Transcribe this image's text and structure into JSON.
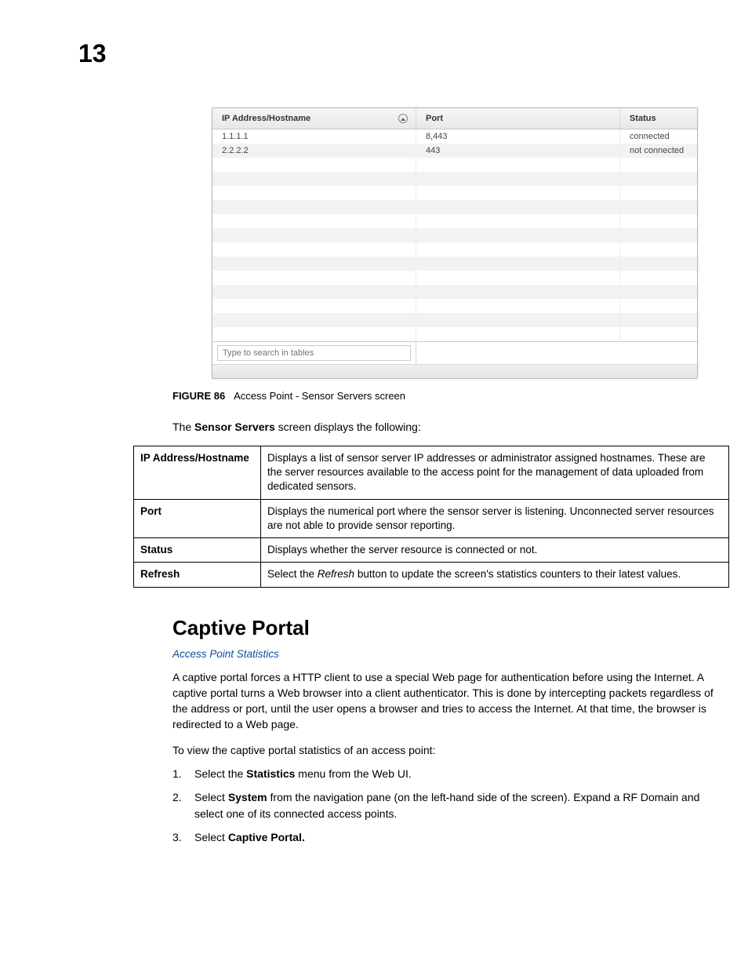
{
  "page_number": "13",
  "screenshot_table": {
    "columns": {
      "ip": "IP Address/Hostname",
      "port": "Port",
      "status": "Status"
    },
    "rows": [
      {
        "ip": "1.1.1.1",
        "port": "8,443",
        "status": "connected"
      },
      {
        "ip": "2.2.2.2",
        "port": "443",
        "status": "not connected"
      }
    ],
    "empty_row_count": 13,
    "search_placeholder": "Type to search in tables",
    "header_bg": "#ececec",
    "row_alt_bg": "#f2f2f2",
    "border_color": "#b9b9b9"
  },
  "figure": {
    "label": "FIGURE 86",
    "caption": "Access Point - Sensor Servers screen"
  },
  "intro_sentence": {
    "prefix": "The ",
    "bold": "Sensor Servers",
    "suffix": " screen displays the following:"
  },
  "definitions": [
    {
      "term": "IP Address/Hostname",
      "desc_plain": "Displays a list of sensor server IP addresses or administrator assigned hostnames. These are the server resources available to the access point for the management of data uploaded from dedicated sensors."
    },
    {
      "term": "Port",
      "desc_plain": "Displays the numerical port where the sensor server is listening. Unconnected server resources are not able to provide sensor reporting."
    },
    {
      "term": "Status",
      "desc_plain": "Displays whether the server resource is connected or not."
    },
    {
      "term": "Refresh",
      "desc_before": "Select the ",
      "desc_italic": "Refresh",
      "desc_after": " button to update the screen's statistics counters to their latest values."
    }
  ],
  "section": {
    "heading": "Captive Portal",
    "link_text": "Access Point Statistics",
    "link_color": "#0b4e9b",
    "paragraph1": "A captive portal forces a HTTP client to use a special Web page for authentication before using the Internet. A captive portal turns a Web browser into a client authenticator. This is done by intercepting packets regardless of the address or port, until the user opens a browser and tries to access the Internet. At that time, the browser is redirected to a Web page.",
    "paragraph2": "To view the captive portal statistics of an access point:",
    "steps": [
      {
        "num": "1.",
        "pre": "Select the ",
        "bold": "Statistics",
        "post": " menu from the Web UI."
      },
      {
        "num": "2.",
        "pre": "Select ",
        "bold": "System",
        "post": " from the navigation pane (on the left-hand side of the screen). Expand a RF Domain and select one of its connected access points."
      },
      {
        "num": "3.",
        "pre": "Select ",
        "bold": "Captive Portal.",
        "post": ""
      }
    ]
  }
}
